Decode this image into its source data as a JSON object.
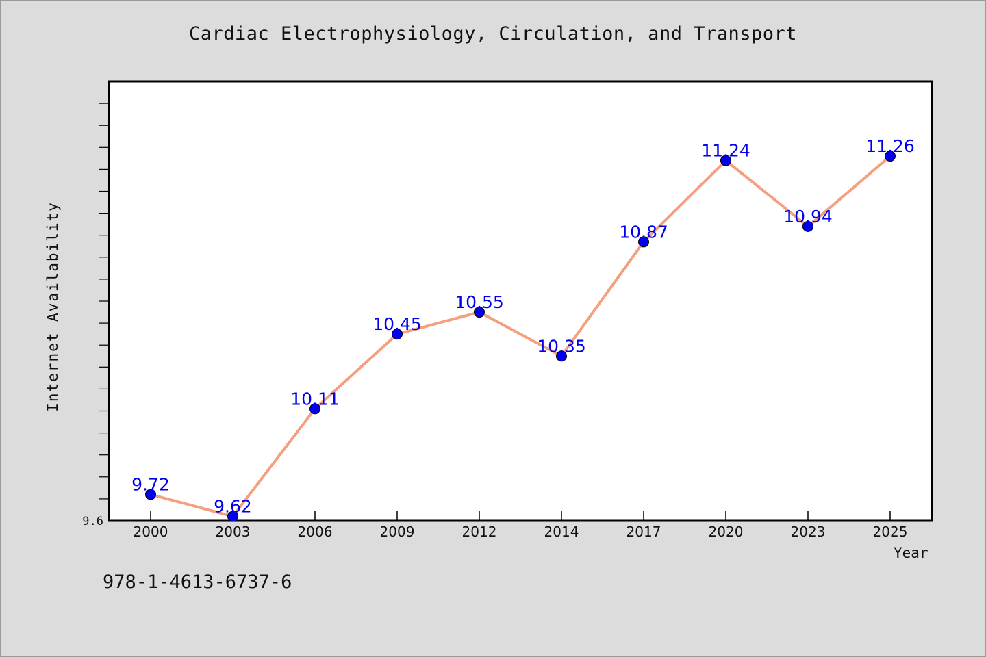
{
  "chart_data": {
    "type": "line",
    "title": "Cardiac Electrophysiology, Circulation, and Transport",
    "xlabel": "Year",
    "ylabel": "Internet Availability",
    "categories": [
      "2000",
      "2003",
      "2006",
      "2009",
      "2012",
      "2014",
      "2017",
      "2020",
      "2023",
      "2025"
    ],
    "series": [
      {
        "values": [
          9.72,
          9.62,
          10.11,
          10.45,
          10.55,
          10.35,
          10.87,
          11.24,
          10.94,
          11.26
        ],
        "labels": [
          "9.72",
          "9.62",
          "10.11",
          "10.45",
          "10.55",
          "10.35",
          "10.87",
          "11.24",
          "10.94",
          "11.26"
        ]
      }
    ],
    "ylim": [
      9.6,
      11.6
    ],
    "yticks": [
      {
        "value": 9.6,
        "label": "9.6"
      }
    ],
    "legend": "none",
    "grid": false,
    "colors": {
      "line": "#f4a07e",
      "marker": "#0000ee",
      "label": "#0000ee",
      "plot_background": "#ffffff",
      "page_background": "#dcdcdc"
    }
  },
  "footer_code": "978-1-4613-6737-6"
}
